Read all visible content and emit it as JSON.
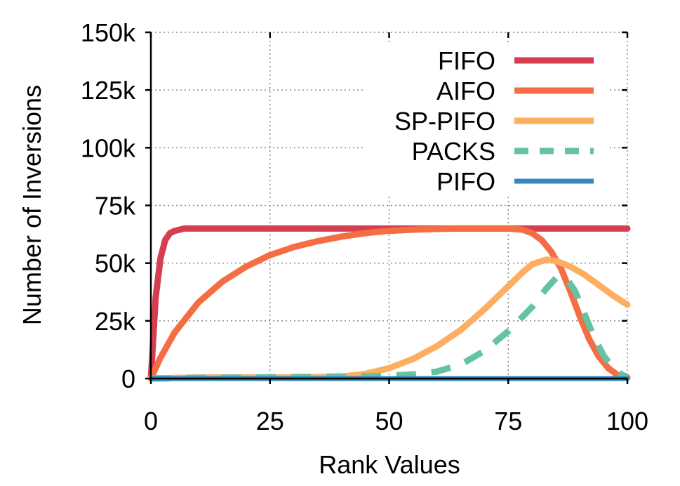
{
  "chart_data": {
    "type": "line",
    "xlabel": "Rank Values",
    "ylabel": "Number of Inversions",
    "xlim": [
      0,
      100
    ],
    "ylim": [
      0,
      150000
    ],
    "xticks": [
      0,
      25,
      50,
      75,
      100
    ],
    "xtick_labels": [
      "0",
      "25",
      "50",
      "75",
      "100"
    ],
    "yticks": [
      0,
      25000,
      50000,
      75000,
      100000,
      125000,
      150000
    ],
    "ytick_labels": [
      "0",
      "25k",
      "50k",
      "75k",
      "100k",
      "125k",
      "150k"
    ],
    "grid": true,
    "legend_position": "top-right",
    "series": [
      {
        "name": "FIFO",
        "color": "#d53e4f",
        "dash": "solid",
        "points": [
          [
            0,
            0
          ],
          [
            1,
            35000
          ],
          [
            2,
            52000
          ],
          [
            3,
            60000
          ],
          [
            4,
            63000
          ],
          [
            5,
            64000
          ],
          [
            7,
            65000
          ],
          [
            10,
            65000
          ],
          [
            20,
            65000
          ],
          [
            40,
            65000
          ],
          [
            60,
            65000
          ],
          [
            80,
            65000
          ],
          [
            90,
            65000
          ],
          [
            100,
            65000
          ]
        ]
      },
      {
        "name": "AIFO",
        "color": "#f46d43",
        "dash": "solid",
        "points": [
          [
            0,
            0
          ],
          [
            2,
            9000
          ],
          [
            5,
            20000
          ],
          [
            10,
            33000
          ],
          [
            15,
            42000
          ],
          [
            20,
            48500
          ],
          [
            25,
            53500
          ],
          [
            30,
            57000
          ],
          [
            35,
            59500
          ],
          [
            40,
            61500
          ],
          [
            45,
            63000
          ],
          [
            50,
            64000
          ],
          [
            55,
            64500
          ],
          [
            60,
            64800
          ],
          [
            65,
            65000
          ],
          [
            70,
            65000
          ],
          [
            75,
            65000
          ],
          [
            78,
            64500
          ],
          [
            80,
            63000
          ],
          [
            82,
            60000
          ],
          [
            84,
            55000
          ],
          [
            86,
            48000
          ],
          [
            88,
            38000
          ],
          [
            90,
            27000
          ],
          [
            92,
            17000
          ],
          [
            94,
            9500
          ],
          [
            96,
            4500
          ],
          [
            98,
            1500
          ],
          [
            100,
            500
          ]
        ]
      },
      {
        "name": "SP-PIFO",
        "color": "#fdae61",
        "dash": "solid",
        "points": [
          [
            0,
            0
          ],
          [
            10,
            500
          ],
          [
            20,
            500
          ],
          [
            30,
            500
          ],
          [
            40,
            800
          ],
          [
            45,
            2000
          ],
          [
            50,
            4500
          ],
          [
            55,
            8500
          ],
          [
            60,
            14000
          ],
          [
            65,
            21000
          ],
          [
            70,
            30000
          ],
          [
            75,
            40000
          ],
          [
            78,
            46000
          ],
          [
            80,
            49500
          ],
          [
            83,
            51500
          ],
          [
            85,
            51000
          ],
          [
            88,
            48500
          ],
          [
            91,
            45000
          ],
          [
            94,
            40500
          ],
          [
            97,
            36000
          ],
          [
            100,
            32000
          ]
        ]
      },
      {
        "name": "PACKS",
        "color": "#66c2a5",
        "dash": "dashed",
        "points": [
          [
            0,
            0
          ],
          [
            10,
            300
          ],
          [
            20,
            500
          ],
          [
            30,
            700
          ],
          [
            40,
            900
          ],
          [
            50,
            1200
          ],
          [
            55,
            1800
          ],
          [
            60,
            3000
          ],
          [
            65,
            6000
          ],
          [
            70,
            12000
          ],
          [
            75,
            20500
          ],
          [
            80,
            31000
          ],
          [
            83,
            39000
          ],
          [
            85,
            43500
          ],
          [
            87,
            44000
          ],
          [
            89,
            38000
          ],
          [
            91,
            28000
          ],
          [
            93,
            18000
          ],
          [
            95,
            10000
          ],
          [
            97,
            4500
          ],
          [
            99,
            1500
          ],
          [
            100,
            800
          ]
        ]
      },
      {
        "name": "PIFO",
        "color": "#3288bd",
        "dash": "solid",
        "points": [
          [
            0,
            0
          ],
          [
            100,
            0
          ]
        ]
      }
    ]
  }
}
